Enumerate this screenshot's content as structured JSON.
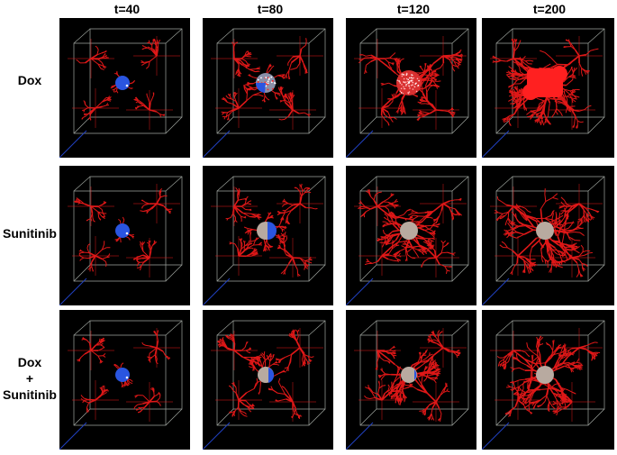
{
  "columns": [
    "t=40",
    "t=80",
    "t=120",
    "t=200"
  ],
  "rows": [
    {
      "label": [
        "Dox"
      ],
      "tumor": [
        {
          "state": "blue-small"
        },
        {
          "state": "mixed-speckle"
        },
        {
          "state": "red-speckle"
        },
        {
          "state": "red-large"
        }
      ]
    },
    {
      "label": [
        "Sunitinib"
      ],
      "tumor": [
        {
          "state": "blue-small"
        },
        {
          "state": "gray-blue"
        },
        {
          "state": "gray"
        },
        {
          "state": "gray"
        }
      ]
    },
    {
      "label": [
        "Dox",
        "+",
        "Sunitinib"
      ],
      "tumor": [
        {
          "state": "blue-small"
        },
        {
          "state": "gray-blue-half"
        },
        {
          "state": "gray-blue-edge"
        },
        {
          "state": "gray"
        }
      ]
    }
  ],
  "colors": {
    "background": "#000000",
    "vessel": "#e01818",
    "cube_edge": "#c8d0c8",
    "tumor_blue": "#2a55e0",
    "tumor_gray": "#b8aaa0",
    "tumor_red": "#ff2020"
  }
}
